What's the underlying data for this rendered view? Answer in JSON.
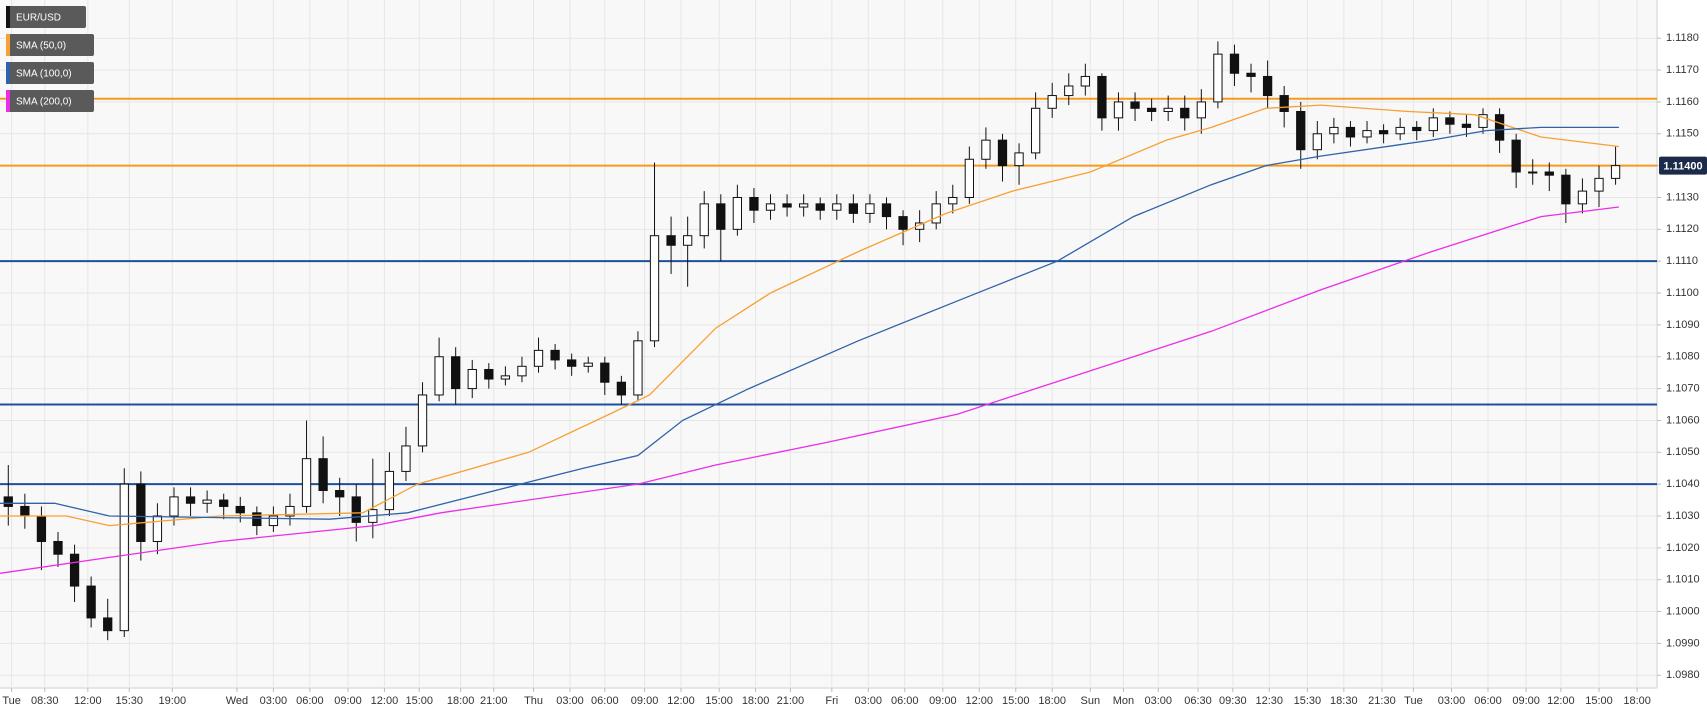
{
  "chart_data": {
    "type": "candlestick",
    "name": "EUR/USD",
    "open": [
      1.1036,
      1.1033,
      1.103,
      1.1022,
      1.1018,
      1.1008,
      1.0998,
      1.0994,
      1.104,
      1.1022,
      1.103,
      1.1036,
      1.1034,
      1.1035,
      1.1033,
      1.1031,
      1.1027,
      1.103,
      1.1033,
      1.1048,
      1.1038,
      1.1036,
      1.1028,
      1.1032,
      1.1044,
      1.1052,
      1.1068,
      1.108,
      1.107,
      1.1076,
      1.1073,
      1.1074,
      1.1077,
      1.1082,
      1.1079,
      1.1077,
      1.1078,
      1.1072,
      1.1068,
      1.1085,
      1.1118,
      1.1115,
      1.1118,
      1.1128,
      1.112,
      1.113,
      1.1126,
      1.1128,
      1.1127,
      1.1128,
      1.1126,
      1.1128,
      1.1125,
      1.1128,
      1.1124,
      1.112,
      1.1122,
      1.1128,
      1.113,
      1.1142,
      1.1148,
      1.114,
      1.1144,
      1.1158,
      1.1162,
      1.1165,
      1.1168,
      1.1155,
      1.116,
      1.1158,
      1.1157,
      1.1158,
      1.1155,
      1.116,
      1.1175,
      1.1169,
      1.1168,
      1.1162,
      1.1157,
      1.1145,
      1.115,
      1.1152,
      1.1149,
      1.1151,
      1.115,
      1.1152,
      1.1151,
      1.1155,
      1.1153,
      1.1152,
      1.1156,
      1.1148,
      1.1138,
      1.1138,
      1.1137,
      1.1128,
      1.1132,
      1.1136
    ],
    "high": [
      1.1046,
      1.1037,
      1.1033,
      1.1025,
      1.1021,
      1.1011,
      1.1004,
      1.1045,
      1.1044,
      1.1034,
      1.1039,
      1.1039,
      1.1038,
      1.1037,
      1.1036,
      1.1033,
      1.1033,
      1.1037,
      1.106,
      1.1055,
      1.1042,
      1.104,
      1.1048,
      1.105,
      1.1058,
      1.1072,
      1.1086,
      1.1083,
      1.1079,
      1.1078,
      1.1077,
      1.108,
      1.1086,
      1.1084,
      1.1081,
      1.108,
      1.108,
      1.1074,
      1.1088,
      1.1141,
      1.1124,
      1.1124,
      1.1132,
      1.1131,
      1.1134,
      1.1133,
      1.1131,
      1.1131,
      1.1131,
      1.113,
      1.1131,
      1.1131,
      1.1131,
      1.113,
      1.1126,
      1.1126,
      1.1132,
      1.1134,
      1.1146,
      1.1152,
      1.115,
      1.1147,
      1.1163,
      1.1166,
      1.1169,
      1.1172,
      1.1169,
      1.1163,
      1.1163,
      1.1161,
      1.1162,
      1.1162,
      1.1164,
      1.1179,
      1.1178,
      1.1172,
      1.1173,
      1.1165,
      1.116,
      1.1154,
      1.1155,
      1.1154,
      1.1154,
      1.1153,
      1.1155,
      1.1154,
      1.1158,
      1.1157,
      1.1156,
      1.1158,
      1.1158,
      1.115,
      1.1142,
      1.1141,
      1.1139,
      1.1136,
      1.114,
      1.1146
    ],
    "low": [
      1.1027,
      1.1026,
      1.1013,
      1.1014,
      1.1003,
      1.0995,
      1.0991,
      1.0992,
      1.1016,
      1.1018,
      1.1027,
      1.103,
      1.1031,
      1.1029,
      1.1028,
      1.1024,
      1.1025,
      1.1027,
      1.1031,
      1.1034,
      1.103,
      1.1022,
      1.1023,
      1.103,
      1.1041,
      1.105,
      1.1066,
      1.1065,
      1.1067,
      1.107,
      1.1071,
      1.1072,
      1.1075,
      1.1076,
      1.1074,
      1.1075,
      1.1068,
      1.1065,
      1.1066,
      1.1083,
      1.1106,
      1.1102,
      1.1114,
      1.111,
      1.1118,
      1.1122,
      1.1123,
      1.1124,
      1.1124,
      1.1123,
      1.1123,
      1.1122,
      1.1122,
      1.112,
      1.1115,
      1.1116,
      1.112,
      1.1125,
      1.1128,
      1.1139,
      1.1135,
      1.1134,
      1.1142,
      1.1155,
      1.1159,
      1.1162,
      1.1151,
      1.1151,
      1.1154,
      1.1154,
      1.1154,
      1.1151,
      1.115,
      1.1158,
      1.1165,
      1.1163,
      1.1158,
      1.1152,
      1.1139,
      1.1142,
      1.1147,
      1.1146,
      1.1147,
      1.1147,
      1.1148,
      1.1148,
      1.1149,
      1.115,
      1.1149,
      1.115,
      1.1144,
      1.1133,
      1.1134,
      1.1132,
      1.1122,
      1.1125,
      1.1127,
      1.1134
    ],
    "close": [
      1.1033,
      1.103,
      1.1022,
      1.1018,
      1.1008,
      1.0998,
      1.0994,
      1.104,
      1.1022,
      1.103,
      1.1036,
      1.1034,
      1.1035,
      1.1033,
      1.1031,
      1.1027,
      1.103,
      1.1033,
      1.1048,
      1.1038,
      1.1036,
      1.1028,
      1.1032,
      1.1044,
      1.1052,
      1.1068,
      1.108,
      1.107,
      1.1076,
      1.1073,
      1.1074,
      1.1077,
      1.1082,
      1.1079,
      1.1077,
      1.1078,
      1.1072,
      1.1068,
      1.1085,
      1.1118,
      1.1115,
      1.1118,
      1.1128,
      1.112,
      1.113,
      1.1126,
      1.1128,
      1.1127,
      1.1128,
      1.1126,
      1.1128,
      1.1125,
      1.1128,
      1.1124,
      1.112,
      1.1122,
      1.1128,
      1.113,
      1.1142,
      1.1148,
      1.114,
      1.1144,
      1.1158,
      1.1162,
      1.1165,
      1.1168,
      1.1155,
      1.116,
      1.1158,
      1.1157,
      1.1158,
      1.1155,
      1.116,
      1.1175,
      1.1169,
      1.1168,
      1.1162,
      1.1157,
      1.1145,
      1.115,
      1.1152,
      1.1149,
      1.1151,
      1.115,
      1.1152,
      1.1151,
      1.1155,
      1.1153,
      1.1152,
      1.1156,
      1.1148,
      1.1138,
      1.1138,
      1.1137,
      1.1128,
      1.1132,
      1.1136,
      1.114
    ],
    "up_color": "#ffffff",
    "down_color": "#111111",
    "overlays": [
      {
        "name": "SMA (50,0)",
        "color": "#f7a033",
        "x": [
          0,
          4,
          6.6,
          13.3,
          21.9,
          25.2,
          31.9,
          37.2,
          39.2,
          43.2,
          46.5,
          51.8,
          57.1,
          61.1,
          65.8,
          70.4,
          73.1,
          76.4,
          79.7,
          85,
          89,
          93,
          97.7
        ],
        "values": [
          1.103,
          1.103,
          1.1027,
          1.103,
          1.1031,
          1.104,
          1.105,
          1.1063,
          1.1068,
          1.1089,
          1.11,
          1.1113,
          1.1125,
          1.1132,
          1.1138,
          1.1148,
          1.1152,
          1.1158,
          1.1159,
          1.1157,
          1.1156,
          1.1149,
          1.1146
        ]
      },
      {
        "name": "SMA (100,0)",
        "color": "#2f62a8",
        "x": [
          0,
          3.3,
          6.6,
          19.9,
          24.6,
          29.9,
          35.2,
          38.5,
          41.2,
          45.2,
          51.8,
          58.5,
          63.8,
          68.4,
          73.1,
          76.4,
          79.7,
          86.4,
          89.7,
          93,
          97.7
        ],
        "values": [
          1.1034,
          1.1034,
          1.103,
          1.1029,
          1.1031,
          1.1038,
          1.1045,
          1.1049,
          1.106,
          1.107,
          1.1085,
          1.1099,
          1.111,
          1.1124,
          1.1134,
          1.114,
          1.1143,
          1.1148,
          1.1151,
          1.1152,
          1.1152
        ]
      },
      {
        "name": "SMA (200,0)",
        "color": "#ea2ee8",
        "x": [
          0,
          6.6,
          13.3,
          22.6,
          26.6,
          38.5,
          43.2,
          49.8,
          57.8,
          63.1,
          73.1,
          79.7,
          86.4,
          93,
          97.7
        ],
        "values": [
          1.1012,
          1.1017,
          1.1022,
          1.1027,
          1.1031,
          1.104,
          1.1046,
          1.1053,
          1.1062,
          1.1071,
          1.1088,
          1.1101,
          1.1113,
          1.1124,
          1.1127
        ]
      }
    ],
    "levels": [
      {
        "value": 1.1161,
        "color": "#f39a1e"
      },
      {
        "value": 1.114,
        "color": "#f39a1e"
      },
      {
        "value": 1.111,
        "color": "#1f4f9c"
      },
      {
        "value": 1.1065,
        "color": "#1f4f9c"
      },
      {
        "value": 1.104,
        "color": "#1f4f9c"
      }
    ],
    "price_tag": {
      "value": 1.114,
      "label": "1.11400"
    },
    "xlim": [
      0,
      100
    ],
    "xticks": [
      {
        "value": 0.7,
        "label": "Tue"
      },
      {
        "value": 2.7,
        "label": "08:30"
      },
      {
        "value": 5.3,
        "label": "12:00"
      },
      {
        "value": 7.8,
        "label": "15:30"
      },
      {
        "value": 10.4,
        "label": "19:00"
      },
      {
        "value": 14.3,
        "label": "Wed"
      },
      {
        "value": 16.5,
        "label": "03:00"
      },
      {
        "value": 18.7,
        "label": "06:00"
      },
      {
        "value": 21,
        "label": "09:00"
      },
      {
        "value": 23.2,
        "label": "12:00"
      },
      {
        "value": 25.3,
        "label": "15:00"
      },
      {
        "value": 27.8,
        "label": "18:00"
      },
      {
        "value": 29.8,
        "label": "21:00"
      },
      {
        "value": 32.2,
        "label": "Thu"
      },
      {
        "value": 34.4,
        "label": "03:00"
      },
      {
        "value": 36.5,
        "label": "06:00"
      },
      {
        "value": 38.9,
        "label": "09:00"
      },
      {
        "value": 41.1,
        "label": "12:00"
      },
      {
        "value": 43.4,
        "label": "15:00"
      },
      {
        "value": 45.6,
        "label": "18:00"
      },
      {
        "value": 47.7,
        "label": "21:00"
      },
      {
        "value": 50.2,
        "label": "Fri"
      },
      {
        "value": 52.4,
        "label": "03:00"
      },
      {
        "value": 54.6,
        "label": "06:00"
      },
      {
        "value": 56.9,
        "label": "09:00"
      },
      {
        "value": 59.1,
        "label": "12:00"
      },
      {
        "value": 61.3,
        "label": "15:00"
      },
      {
        "value": 63.5,
        "label": "18:00"
      },
      {
        "value": 65.8,
        "label": "Sun"
      },
      {
        "value": 67.8,
        "label": "Mon"
      },
      {
        "value": 69.9,
        "label": "03:00"
      },
      {
        "value": 72.3,
        "label": "06:30"
      },
      {
        "value": 74.4,
        "label": "09:30"
      },
      {
        "value": 76.6,
        "label": "12:30"
      },
      {
        "value": 78.9,
        "label": "15:30"
      },
      {
        "value": 81.1,
        "label": "18:30"
      },
      {
        "value": 83.4,
        "label": "21:30"
      },
      {
        "value": 85.3,
        "label": "Tue"
      },
      {
        "value": 87.6,
        "label": "03:00"
      },
      {
        "value": 89.8,
        "label": "06:00"
      },
      {
        "value": 92.1,
        "label": "09:00"
      },
      {
        "value": 94.2,
        "label": "12:00"
      },
      {
        "value": 96.5,
        "label": "15:00"
      },
      {
        "value": 98.8,
        "label": "18:00"
      }
    ],
    "ylim": [
      1.0976,
      1.1192
    ],
    "yticks": [
      {
        "value": 1.098,
        "label": "1.0980"
      },
      {
        "value": 1.099,
        "label": "1.0990"
      },
      {
        "value": 1.1,
        "label": "1.1000"
      },
      {
        "value": 1.101,
        "label": "1.1010"
      },
      {
        "value": 1.102,
        "label": "1.1020"
      },
      {
        "value": 1.103,
        "label": "1.1030"
      },
      {
        "value": 1.104,
        "label": "1.1040"
      },
      {
        "value": 1.105,
        "label": "1.1050"
      },
      {
        "value": 1.106,
        "label": "1.1060"
      },
      {
        "value": 1.107,
        "label": "1.1070"
      },
      {
        "value": 1.108,
        "label": "1.1080"
      },
      {
        "value": 1.109,
        "label": "1.1090"
      },
      {
        "value": 1.11,
        "label": "1.1100"
      },
      {
        "value": 1.111,
        "label": "1.1110"
      },
      {
        "value": 1.112,
        "label": "1.1120"
      },
      {
        "value": 1.113,
        "label": "1.1130"
      },
      {
        "value": 1.114,
        "label": "1.1140"
      },
      {
        "value": 1.115,
        "label": "1.1150"
      },
      {
        "value": 1.116,
        "label": "1.1160"
      },
      {
        "value": 1.117,
        "label": "1.1170"
      },
      {
        "value": 1.118,
        "label": "1.1180"
      }
    ],
    "grid": true
  }
}
